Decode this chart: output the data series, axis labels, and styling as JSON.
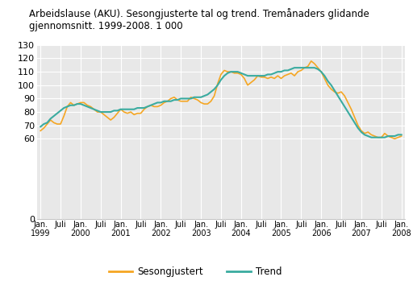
{
  "title": "Arbeidslause (AKU). Sesongjusterte tal og trend. Tremånaders glidande\ngjennomsnitt. 1999-2008. 1 000",
  "ylim": [
    0,
    130
  ],
  "background_color": "#ffffff",
  "plot_background": "#e8e8e8",
  "sesongjustert_color": "#f5a623",
  "trend_color": "#3aaba0",
  "legend_labels": [
    "Sesongjustert",
    "Trend"
  ],
  "x_tick_labels": [
    "Jan.\n1999",
    "Juli",
    "Jan.\n2000",
    "Juli",
    "Jan.\n2001",
    "Juli",
    "Jan.\n2002",
    "Juli",
    "Jan.\n2003",
    "Juli",
    "Jan.\n2004",
    "Juli",
    "Jan.\n2005",
    "Juli",
    "Jan.\n2006",
    "Juli",
    "Jan.\n2007",
    "Juli",
    "Jan.\n2008"
  ],
  "sesongjustert": [
    66,
    68,
    71,
    74,
    72,
    71,
    71,
    77,
    84,
    87,
    85,
    86,
    87,
    87,
    85,
    84,
    82,
    80,
    80,
    78,
    76,
    74,
    76,
    79,
    82,
    80,
    79,
    80,
    78,
    79,
    79,
    82,
    84,
    85,
    84,
    84,
    85,
    87,
    88,
    90,
    91,
    89,
    88,
    88,
    88,
    91,
    90,
    89,
    87,
    86,
    86,
    88,
    92,
    101,
    108,
    111,
    110,
    110,
    109,
    109,
    108,
    105,
    100,
    102,
    104,
    107,
    106,
    106,
    105,
    106,
    105,
    107,
    105,
    107,
    108,
    109,
    107,
    110,
    111,
    113,
    114,
    118,
    116,
    113,
    110,
    105,
    100,
    97,
    95,
    94,
    95,
    92,
    87,
    82,
    76,
    70,
    66,
    64,
    65,
    63,
    62,
    61,
    61,
    64,
    62,
    61,
    60,
    61,
    62
  ],
  "trend": [
    69,
    71,
    72,
    75,
    77,
    79,
    81,
    83,
    84,
    85,
    85,
    86,
    86,
    85,
    84,
    83,
    82,
    81,
    80,
    80,
    80,
    80,
    81,
    81,
    82,
    82,
    82,
    82,
    82,
    83,
    83,
    83,
    84,
    85,
    86,
    87,
    87,
    88,
    88,
    88,
    89,
    89,
    90,
    90,
    90,
    90,
    91,
    91,
    91,
    92,
    93,
    95,
    97,
    100,
    104,
    107,
    109,
    110,
    110,
    110,
    109,
    108,
    107,
    107,
    107,
    107,
    107,
    107,
    108,
    108,
    109,
    110,
    110,
    111,
    111,
    112,
    113,
    113,
    113,
    113,
    113,
    113,
    113,
    112,
    110,
    107,
    103,
    100,
    96,
    92,
    88,
    84,
    80,
    76,
    72,
    68,
    65,
    63,
    62,
    61,
    61,
    61,
    61,
    61,
    62,
    62,
    62,
    63,
    63
  ]
}
